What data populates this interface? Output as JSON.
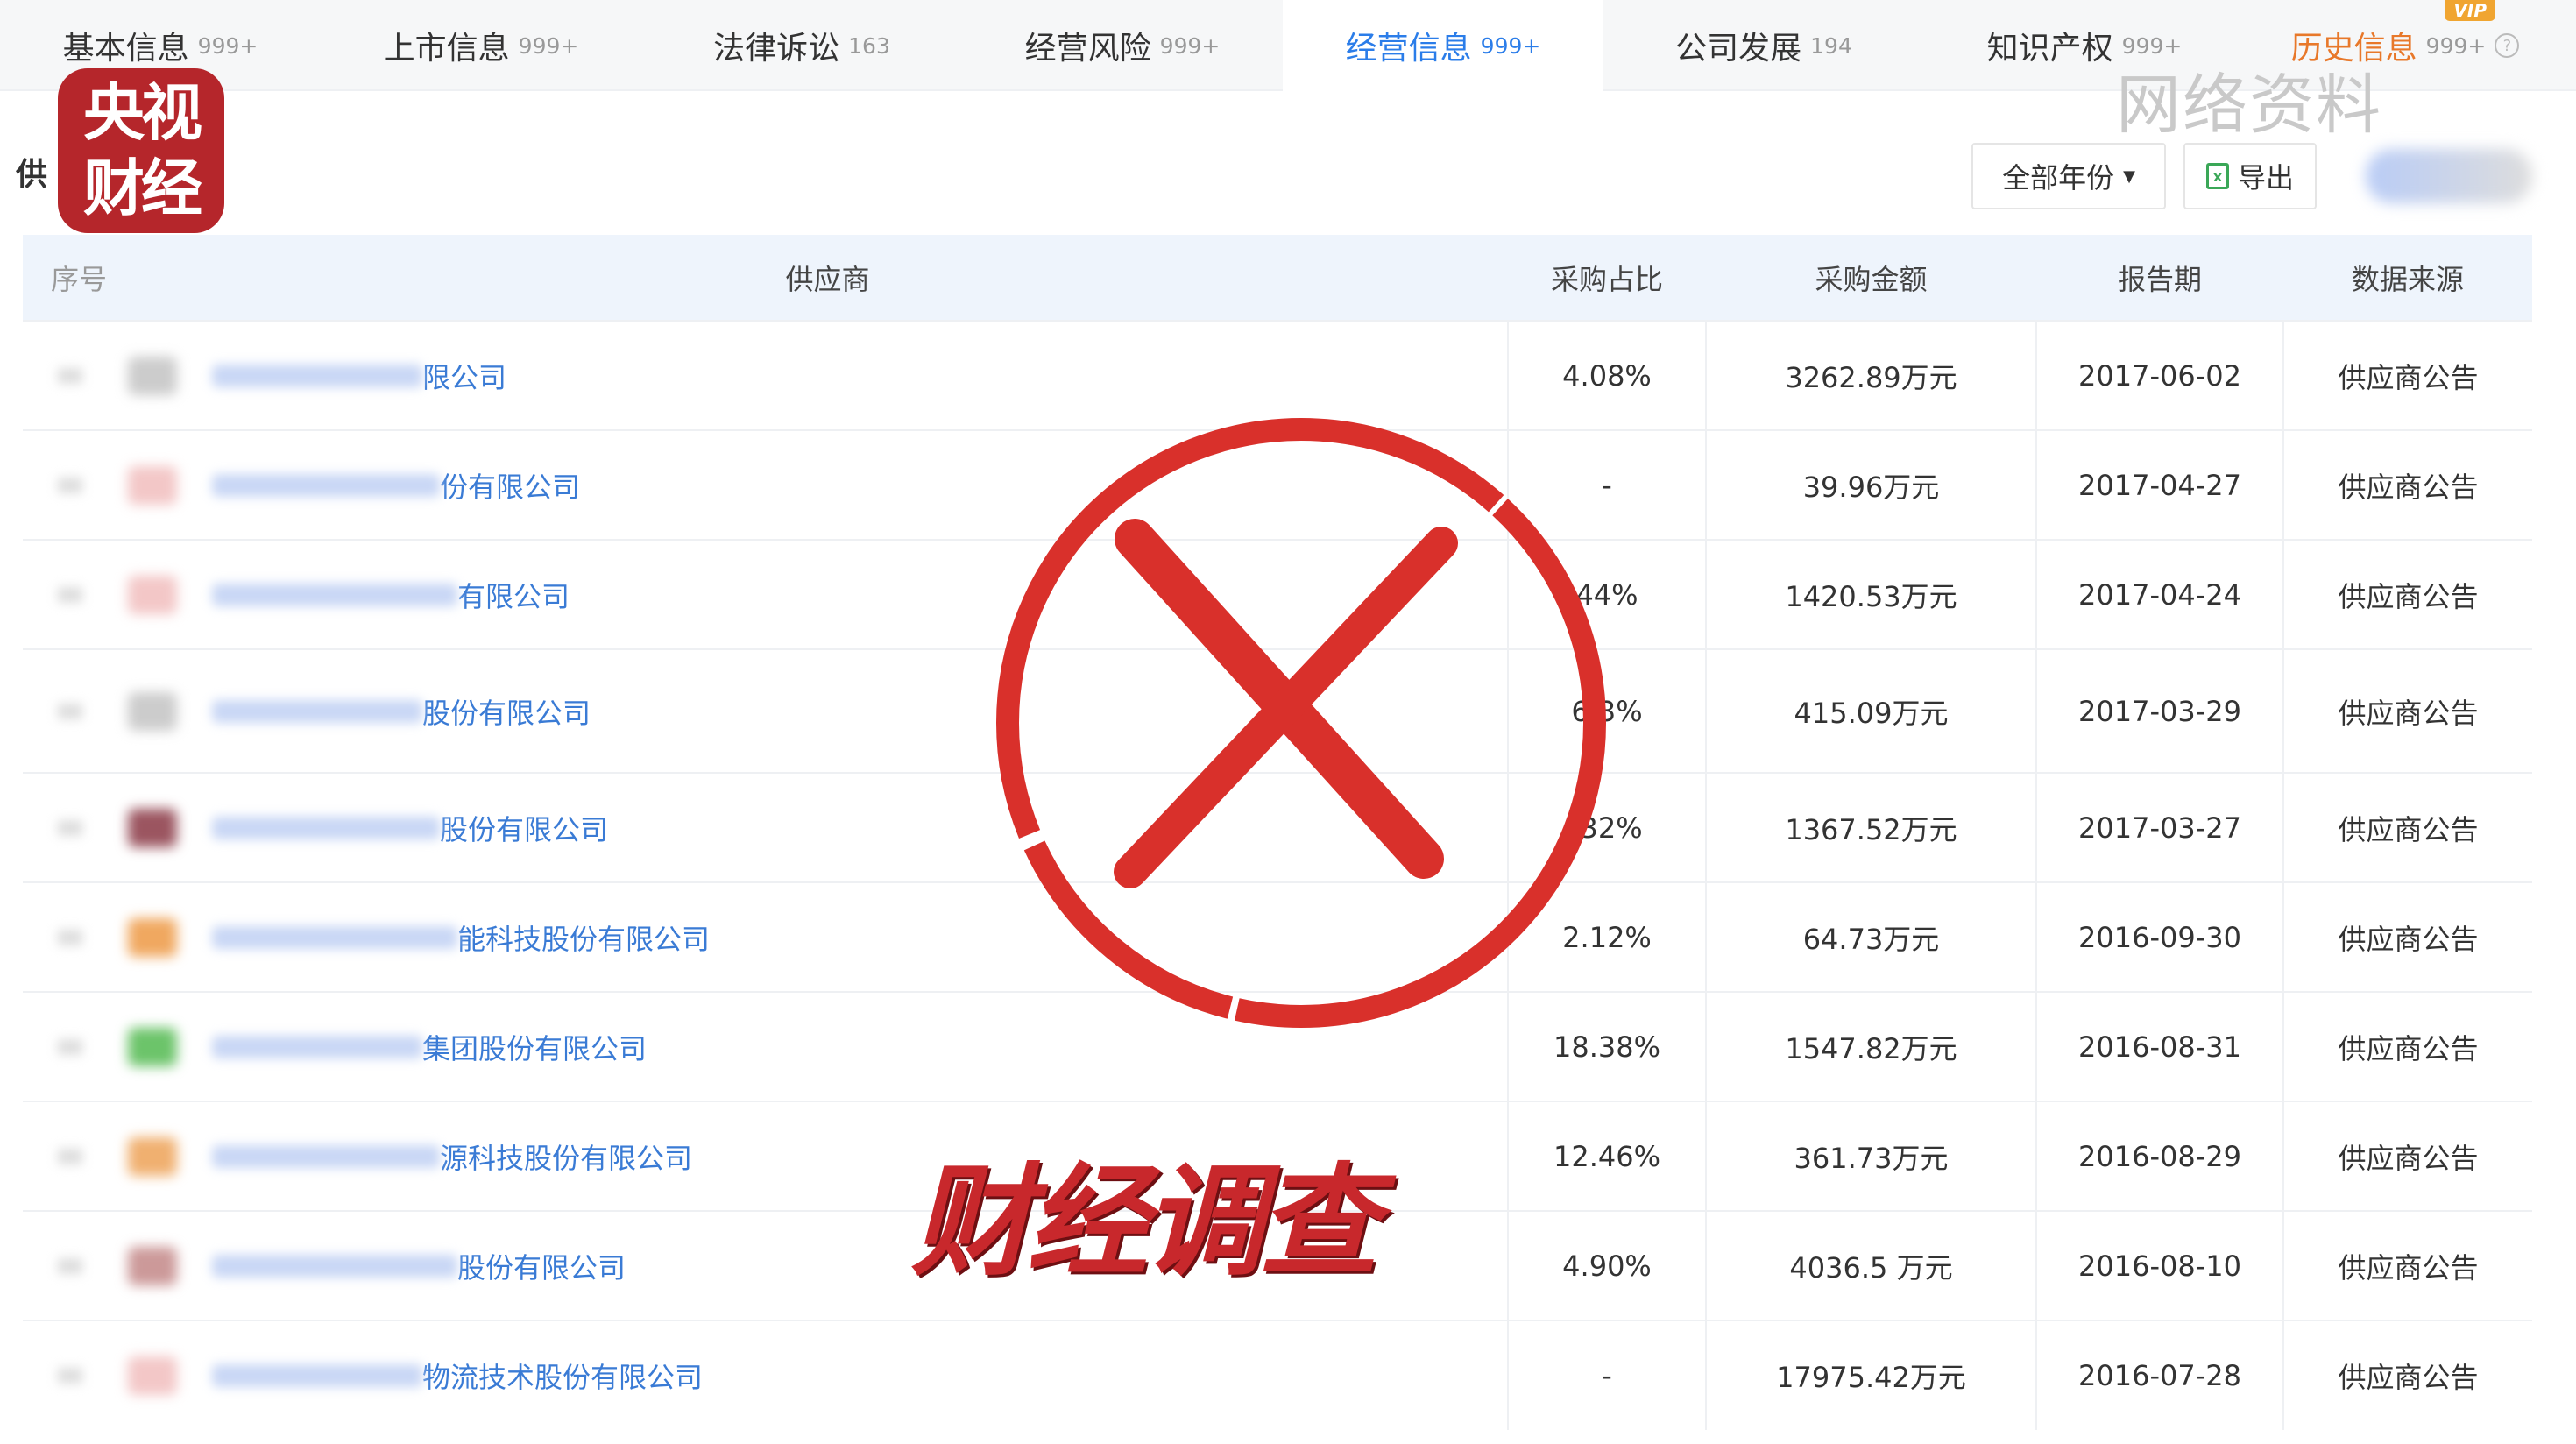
{
  "tabs": [
    {
      "label": "基本信息",
      "count": "999+"
    },
    {
      "label": "上市信息",
      "count": "999+"
    },
    {
      "label": "法律诉讼",
      "count": "163"
    },
    {
      "label": "经营风险",
      "count": "999+"
    },
    {
      "label": "经营信息",
      "count": "999+",
      "active": true
    },
    {
      "label": "公司发展",
      "count": "194"
    },
    {
      "label": "知识产权",
      "count": "999+"
    },
    {
      "label": "历史信息",
      "count": "999+",
      "badge": "VIP"
    }
  ],
  "logo": {
    "line1": "央视",
    "line2": "财经"
  },
  "section_title_partial": "供",
  "watermark": "网络资料",
  "toolbar": {
    "year_filter": "全部年份",
    "export": "导出"
  },
  "table": {
    "headers": [
      "序号",
      "供应商",
      "采购占比",
      "采购金额",
      "报告期",
      "数据来源"
    ],
    "rows": [
      {
        "supplier": "限公司",
        "ratio": "4.08%",
        "amount": "3262.89万元",
        "date": "2017-06-02",
        "source": "供应商公告",
        "thumb": "#ccc"
      },
      {
        "supplier": "份有限公司",
        "ratio": "-",
        "amount": "39.96万元",
        "date": "2017-04-27",
        "source": "供应商公告",
        "thumb": "#f3c7c7"
      },
      {
        "supplier": "有限公司",
        "ratio": "44%",
        "amount": "1420.53万元",
        "date": "2017-04-24",
        "source": "供应商公告",
        "thumb": "#f3c7c7"
      },
      {
        "supplier": "股份有限公司",
        "ratio": "6 3%",
        "amount": "415.09万元",
        "date": "2017-03-29",
        "source": "供应商公告",
        "thumb": "#ccc"
      },
      {
        "supplier": "股份有限公司",
        "ratio": ".32%",
        "amount": "1367.52万元",
        "date": "2017-03-27",
        "source": "供应商公告",
        "thumb": "#9b5560"
      },
      {
        "supplier": "能科技股份有限公司",
        "ratio": "2.12%",
        "amount": "64.73万元",
        "date": "2016-09-30",
        "source": "供应商公告",
        "thumb": "#f0a860"
      },
      {
        "supplier": "集团股份有限公司",
        "ratio": "18.38%",
        "amount": "1547.82万元",
        "date": "2016-08-31",
        "source": "供应商公告",
        "thumb": "#6cc46a"
      },
      {
        "supplier": "源科技股份有限公司",
        "ratio": "12.46%",
        "amount": "361.73万元",
        "date": "2016-08-29",
        "source": "供应商公告",
        "thumb": "#f0b070"
      },
      {
        "supplier": "股份有限公司",
        "ratio": "4.90%",
        "amount": "4036.5 万元",
        "date": "2016-08-10",
        "source": "供应商公告",
        "thumb": "#c99"
      },
      {
        "supplier": "物流技术股份有限公司",
        "ratio": "-",
        "amount": "17975.42万元",
        "date": "2016-07-28",
        "source": "供应商公告",
        "thumb": "#f3c7c7"
      }
    ]
  },
  "overlay_title": "财经调查",
  "colors": {
    "active_tab": "#2b7de9",
    "link": "#3a7bd5",
    "stamp": "#d9302b",
    "logo": "#b5262b"
  }
}
